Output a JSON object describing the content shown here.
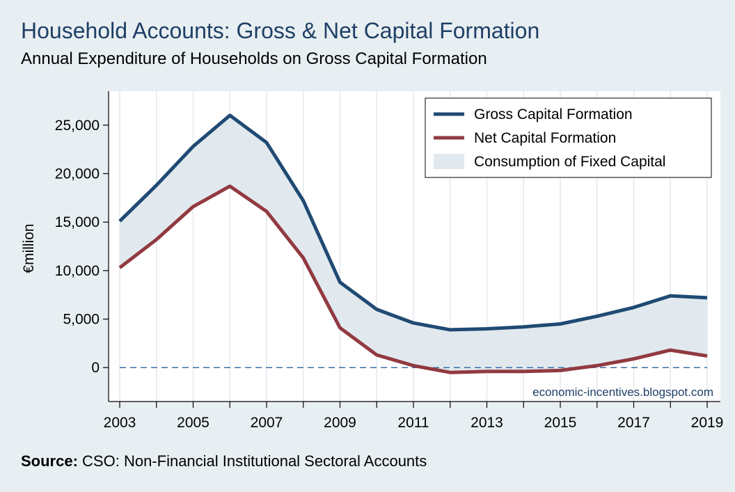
{
  "title": "Household Accounts: Gross & Net Capital Formation",
  "subtitle": "Annual Expenditure of Households on Gross Capital Formation",
  "source": {
    "label": "Source:",
    "text": "CSO: Non-Financial Institutional Sectoral Accounts"
  },
  "watermark": "economic-incentives.blogspot.com",
  "colors": {
    "gross": "#1f4a73",
    "net": "#913a40",
    "band": "#e1e9ef",
    "zero": "#3a6ea5"
  },
  "chart_data": {
    "type": "line",
    "x": [
      2003,
      2004,
      2005,
      2006,
      2007,
      2008,
      2009,
      2010,
      2011,
      2012,
      2013,
      2014,
      2015,
      2016,
      2017,
      2018,
      2019
    ],
    "series": [
      {
        "name": "Gross Capital Formation",
        "values": [
          15100,
          18800,
          22800,
          26000,
          23200,
          17200,
          8800,
          6000,
          4600,
          3900,
          4000,
          4200,
          4500,
          5300,
          6200,
          7400,
          7200
        ]
      },
      {
        "name": "Net Capital Formation",
        "values": [
          10300,
          13200,
          16600,
          18700,
          16100,
          11300,
          4100,
          1300,
          200,
          -500,
          -400,
          -400,
          -300,
          200,
          900,
          1800,
          1200
        ]
      }
    ],
    "band": {
      "name": "Consumption of Fixed Capital",
      "from": "Net Capital Formation",
      "to": "Gross Capital Formation"
    },
    "xticks": [
      "2003",
      "2005",
      "2007",
      "2009",
      "2011",
      "2013",
      "2015",
      "2017",
      "2019"
    ],
    "yticks": [
      "0",
      "5,000",
      "10,000",
      "15,000",
      "20,000",
      "25,000"
    ],
    "ytick_values": [
      0,
      5000,
      10000,
      15000,
      20000,
      25000
    ],
    "xlabel": "",
    "ylabel": "€million",
    "xlim": [
      2003,
      2019
    ],
    "ylim": [
      -3500,
      28500
    ],
    "reference_line": {
      "y": 0,
      "style": "dashed"
    },
    "grid": "vertical",
    "legend": "top-right"
  }
}
